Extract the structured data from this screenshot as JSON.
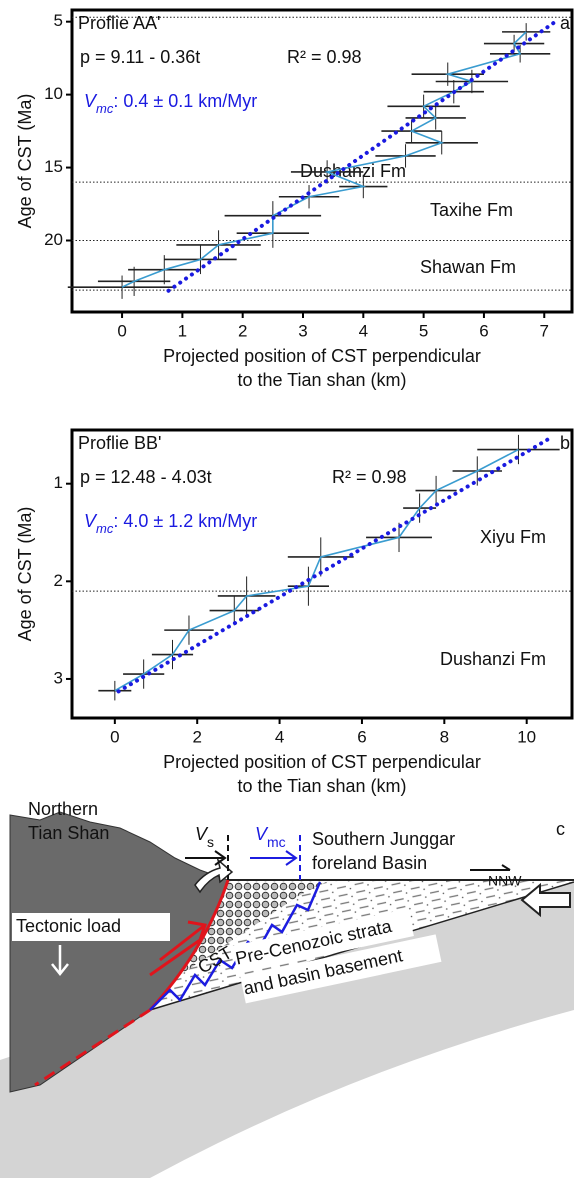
{
  "chart_data": [
    {
      "type": "errorbar",
      "panel": "a",
      "title": "Proflie AA'",
      "equation": "p = 9.11 - 0.36t",
      "r_squared": "R² = 0.98",
      "velocity": {
        "symbol": "V",
        "subscript": "mc",
        "text": ": 0.4 ± 0.1 km/Myr"
      },
      "xlabel": [
        "Projected position of CST perpendicular",
        "to the Tian shan (km)"
      ],
      "ylabel": "Age of CST (Ma)",
      "xlim": [
        -0.83,
        7.46
      ],
      "ylim": [
        4.2,
        24.9
      ],
      "y_inverted": true,
      "xticks": [
        0,
        1,
        2,
        3,
        4,
        5,
        6,
        7
      ],
      "yticks": [
        5,
        10,
        15,
        20
      ],
      "hlines": [
        4.7,
        16,
        20,
        23.4
      ],
      "formations": [
        "Dushanzi Fm",
        "Taxihe Fm",
        "Shawan Fm"
      ],
      "series": [
        {
          "color": "#3a9cd0",
          "error_color": "#222222",
          "x": [
            6.7,
            6.5,
            6.6,
            5.4,
            5.8,
            5.5,
            5.0,
            5.2,
            4.8,
            5.3,
            4.7,
            3.4,
            4.0,
            3.1,
            2.5,
            2.5,
            1.6,
            1.3,
            0.7,
            0.2,
            0.0
          ],
          "values": [
            5.7,
            6.5,
            7.2,
            8.6,
            9.1,
            9.8,
            10.8,
            11.6,
            12.5,
            13.3,
            14.2,
            15.3,
            16.3,
            17.0,
            18.3,
            19.5,
            20.3,
            21.3,
            22.0,
            22.8,
            23.2
          ],
          "x_errors": [
            0.4,
            0.5,
            0.5,
            0.6,
            0.6,
            0.5,
            0.6,
            0.5,
            0.5,
            0.6,
            0.5,
            0.6,
            0.4,
            0.5,
            0.8,
            0.6,
            0.7,
            0.6,
            0.6,
            0.6,
            0.9
          ],
          "errors": [
            0.6,
            0.6,
            0.6,
            0.8,
            0.8,
            0.8,
            0.8,
            0.8,
            0.8,
            0.8,
            0.8,
            0.8,
            0.8,
            0.8,
            1.0,
            1.0,
            1.0,
            1.0,
            1.0,
            1.0,
            0.8
          ]
        }
      ],
      "fit": {
        "color": "#1a1ae0",
        "x": [
          7.15,
          0.75
        ],
        "values": [
          5.1,
          23.5
        ]
      }
    },
    {
      "type": "errorbar",
      "panel": "b",
      "title": "Proflie BB'",
      "equation": "p = 12.48 - 4.03t",
      "r_squared": "R² = 0.98",
      "velocity": {
        "symbol": "V",
        "subscript": "mc",
        "text": ": 4.0 ± 1.2 km/Myr"
      },
      "xlabel": [
        "Projected position of CST perpendicular",
        "to the Tian shan (km)"
      ],
      "ylabel": "Age of CST (Ma)",
      "xlim": [
        -1.04,
        11.1
      ],
      "ylim": [
        0.45,
        3.4
      ],
      "y_inverted": true,
      "xticks": [
        0,
        2,
        4,
        6,
        8,
        10
      ],
      "yticks": [
        1,
        2,
        3
      ],
      "hlines": [
        2.1
      ],
      "formations": [
        "Xiyu Fm",
        "Dushanzi Fm"
      ],
      "series": [
        {
          "color": "#3a9cd0",
          "error_color": "#222222",
          "x": [
            9.8,
            8.8,
            7.8,
            7.4,
            6.9,
            5.0,
            4.7,
            3.2,
            2.9,
            1.8,
            1.4,
            0.7,
            0.0
          ],
          "values": [
            0.65,
            0.87,
            1.07,
            1.25,
            1.55,
            1.75,
            2.05,
            2.15,
            2.3,
            2.5,
            2.75,
            2.95,
            3.12
          ],
          "x_errors": [
            1.0,
            0.6,
            0.5,
            0.4,
            0.8,
            0.8,
            0.5,
            0.7,
            0.6,
            0.6,
            0.5,
            0.5,
            0.4
          ],
          "errors": [
            0.15,
            0.15,
            0.15,
            0.15,
            0.15,
            0.2,
            0.2,
            0.2,
            0.15,
            0.15,
            0.15,
            0.15,
            0.1
          ]
        }
      ],
      "fit": {
        "color": "#1a1ae0",
        "x": [
          10.5,
          0.0
        ],
        "values": [
          0.55,
          3.15
        ]
      }
    }
  ],
  "diagram": {
    "panel": "c",
    "northern": [
      "Northern",
      "Tian Shan"
    ],
    "vs_symbol": "V",
    "vs_subscript": "s",
    "vmc_symbol": "V",
    "vmc_subscript": "mc",
    "basin": [
      "Southern Junggar",
      "foreland Basin"
    ],
    "direction": "NNW",
    "load": "Tectonic load",
    "cst": "CST",
    "basement": [
      "Pre-Cenozoic strata",
      "and basin basement"
    ]
  }
}
